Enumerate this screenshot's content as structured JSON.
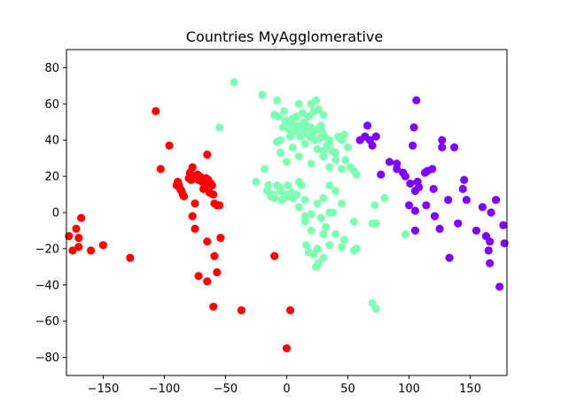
{
  "chart_data": {
    "type": "scatter",
    "title": "Countries MyAgglomerative",
    "xlabel": "",
    "ylabel": "",
    "xlim": [
      -180,
      180
    ],
    "ylim": [
      -90,
      90
    ],
    "xticks": [
      -150,
      -100,
      -50,
      0,
      50,
      100,
      150
    ],
    "yticks": [
      -80,
      -60,
      -40,
      -20,
      0,
      20,
      40,
      60,
      80
    ],
    "grid": false,
    "legend": "none",
    "colors": {
      "red": "#ff0000",
      "green": "#80ffb4",
      "purple": "#8000ff"
    },
    "series": [
      {
        "color": "red",
        "points": [
          [
            -178,
            -13
          ],
          [
            -175,
            -21
          ],
          [
            -172,
            -9
          ],
          [
            -170,
            -14
          ],
          [
            -170,
            -19
          ],
          [
            -168,
            -3
          ],
          [
            -160,
            -21
          ],
          [
            -150,
            -18
          ],
          [
            -128,
            -25
          ],
          [
            -107,
            56
          ],
          [
            -103,
            24
          ],
          [
            -96,
            37
          ],
          [
            -90,
            15
          ],
          [
            -89,
            17
          ],
          [
            -88,
            15
          ],
          [
            -87,
            13
          ],
          [
            -86,
            12
          ],
          [
            -85,
            10
          ],
          [
            -84,
            9
          ],
          [
            -80,
            19
          ],
          [
            -79,
            22
          ],
          [
            -78,
            18
          ],
          [
            -77,
            25
          ],
          [
            -76,
            20
          ],
          [
            -75,
            5
          ],
          [
            -73,
            21
          ],
          [
            -72,
            18
          ],
          [
            -71,
            20
          ],
          [
            -70,
            19
          ],
          [
            -69,
            17
          ],
          [
            -68,
            13
          ],
          [
            -67,
            14
          ],
          [
            -66,
            19
          ],
          [
            -65,
            32
          ],
          [
            -64,
            18
          ],
          [
            -63,
            11
          ],
          [
            -62,
            16
          ],
          [
            -61,
            15
          ],
          [
            -60,
            10
          ],
          [
            -59,
            5
          ],
          [
            -57,
            4
          ],
          [
            -55,
            4
          ],
          [
            -77,
            -2
          ],
          [
            -75,
            -9
          ],
          [
            -72,
            -35
          ],
          [
            -65,
            -16
          ],
          [
            -65,
            -38
          ],
          [
            -60,
            -52
          ],
          [
            -59,
            -24
          ],
          [
            -57,
            -33
          ],
          [
            -54,
            -14
          ],
          [
            -37,
            -54
          ],
          [
            -10,
            -24
          ],
          [
            3,
            -54
          ],
          [
            0,
            -75
          ]
        ]
      },
      {
        "color": "green",
        "points": [
          [
            -43,
            72
          ],
          [
            -20,
            65
          ],
          [
            -55,
            47
          ],
          [
            -25,
            17
          ],
          [
            -18,
            24
          ],
          [
            -16,
            12
          ],
          [
            -15,
            15
          ],
          [
            -13,
            9
          ],
          [
            -11,
            10
          ],
          [
            -10,
            8
          ],
          [
            -8,
            15
          ],
          [
            -6,
            14
          ],
          [
            -5,
            12
          ],
          [
            -4,
            7
          ],
          [
            -2,
            8
          ],
          [
            0,
            10
          ],
          [
            1,
            15
          ],
          [
            2,
            9
          ],
          [
            4,
            11
          ],
          [
            8,
            10
          ],
          [
            10,
            17
          ],
          [
            12,
            15
          ],
          [
            -10,
            54
          ],
          [
            -8,
            62
          ],
          [
            -7,
            53
          ],
          [
            -5,
            40
          ],
          [
            -3,
            47
          ],
          [
            -2,
            56
          ],
          [
            -1,
            51
          ],
          [
            0,
            48
          ],
          [
            2,
            46
          ],
          [
            3,
            42
          ],
          [
            4,
            50
          ],
          [
            5,
            52
          ],
          [
            6,
            47
          ],
          [
            7,
            45
          ],
          [
            8,
            53
          ],
          [
            9,
            48
          ],
          [
            10,
            45
          ],
          [
            11,
            42
          ],
          [
            12,
            43
          ],
          [
            13,
            47
          ],
          [
            14,
            50
          ],
          [
            15,
            44
          ],
          [
            16,
            48
          ],
          [
            17,
            45
          ],
          [
            18,
            53
          ],
          [
            19,
            42
          ],
          [
            20,
            47
          ],
          [
            21,
            44
          ],
          [
            22,
            56
          ],
          [
            23,
            40
          ],
          [
            24,
            62
          ],
          [
            25,
            46
          ],
          [
            26,
            57
          ],
          [
            27,
            41
          ],
          [
            28,
            48
          ],
          [
            29,
            45
          ],
          [
            30,
            54
          ],
          [
            31,
            42
          ],
          [
            10,
            60
          ],
          [
            13,
            55
          ],
          [
            20,
            60
          ],
          [
            -8,
            39
          ],
          [
            -5,
            33
          ],
          [
            0,
            28
          ],
          [
            5,
            36
          ],
          [
            10,
            31
          ],
          [
            15,
            38
          ],
          [
            20,
            27
          ],
          [
            25,
            35
          ],
          [
            30,
            31
          ],
          [
            35,
            38
          ],
          [
            40,
            33
          ],
          [
            45,
            40
          ],
          [
            50,
            36
          ],
          [
            35,
            25
          ],
          [
            40,
            29
          ],
          [
            45,
            24
          ],
          [
            48,
            29
          ],
          [
            52,
            25
          ],
          [
            55,
            23
          ],
          [
            57,
            21
          ],
          [
            47,
            43
          ],
          [
            42,
            42
          ],
          [
            37,
            34
          ],
          [
            35,
            40
          ],
          [
            33,
            37
          ],
          [
            30,
            34
          ],
          [
            5,
            8
          ],
          [
            15,
            7
          ],
          [
            10,
            3
          ],
          [
            15,
            -2
          ],
          [
            20,
            -1
          ],
          [
            25,
            5
          ],
          [
            30,
            8
          ],
          [
            35,
            15
          ],
          [
            40,
            12
          ],
          [
            45,
            5
          ],
          [
            28,
            -3
          ],
          [
            35,
            0
          ],
          [
            32,
            -8
          ],
          [
            30,
            -12
          ],
          [
            25,
            -20
          ],
          [
            20,
            -10
          ],
          [
            22,
            -23
          ],
          [
            24,
            -30
          ],
          [
            26,
            -28
          ],
          [
            30,
            -25
          ],
          [
            35,
            -18
          ],
          [
            40,
            -12
          ],
          [
            45,
            -19
          ],
          [
            47,
            -15
          ],
          [
            55,
            -21
          ],
          [
            57,
            -20
          ],
          [
            55,
            -5
          ],
          [
            18,
            -22
          ],
          [
            16,
            -18
          ],
          [
            15,
            -5
          ],
          [
            38,
            0
          ],
          [
            70,
            -50
          ],
          [
            73,
            -53
          ],
          [
            72,
            4
          ],
          [
            70,
            -6
          ],
          [
            73,
            -6
          ],
          [
            80,
            8
          ],
          [
            97,
            -12
          ]
        ]
      },
      {
        "color": "purple",
        "points": [
          [
            60,
            40
          ],
          [
            64,
            42
          ],
          [
            66,
            48
          ],
          [
            68,
            40
          ],
          [
            70,
            37
          ],
          [
            73,
            42
          ],
          [
            77,
            21
          ],
          [
            84,
            28
          ],
          [
            90,
            24
          ],
          [
            90,
            27
          ],
          [
            95,
            22
          ],
          [
            97,
            20
          ],
          [
            100,
            4
          ],
          [
            101,
            16
          ],
          [
            103,
            37
          ],
          [
            104,
            47
          ],
          [
            105,
            1
          ],
          [
            105,
            12
          ],
          [
            105,
            -10
          ],
          [
            106,
            62
          ],
          [
            107,
            17
          ],
          [
            108,
            14
          ],
          [
            113,
            22
          ],
          [
            114,
            4
          ],
          [
            115,
            23
          ],
          [
            119,
            24
          ],
          [
            120,
            13
          ],
          [
            121,
            -2
          ],
          [
            125,
            -9
          ],
          [
            127,
            40
          ],
          [
            127,
            36
          ],
          [
            132,
            7
          ],
          [
            133,
            -25
          ],
          [
            137,
            36
          ],
          [
            140,
            -6
          ],
          [
            144,
            13
          ],
          [
            145,
            18
          ],
          [
            147,
            7
          ],
          [
            155,
            -10
          ],
          [
            160,
            3
          ],
          [
            163,
            -13
          ],
          [
            165,
            -21
          ],
          [
            166,
            -16
          ],
          [
            166,
            -28
          ],
          [
            167,
            0
          ],
          [
            171,
            7
          ],
          [
            174,
            -41
          ],
          [
            177,
            -7
          ],
          [
            178,
            -17
          ]
        ]
      }
    ]
  }
}
